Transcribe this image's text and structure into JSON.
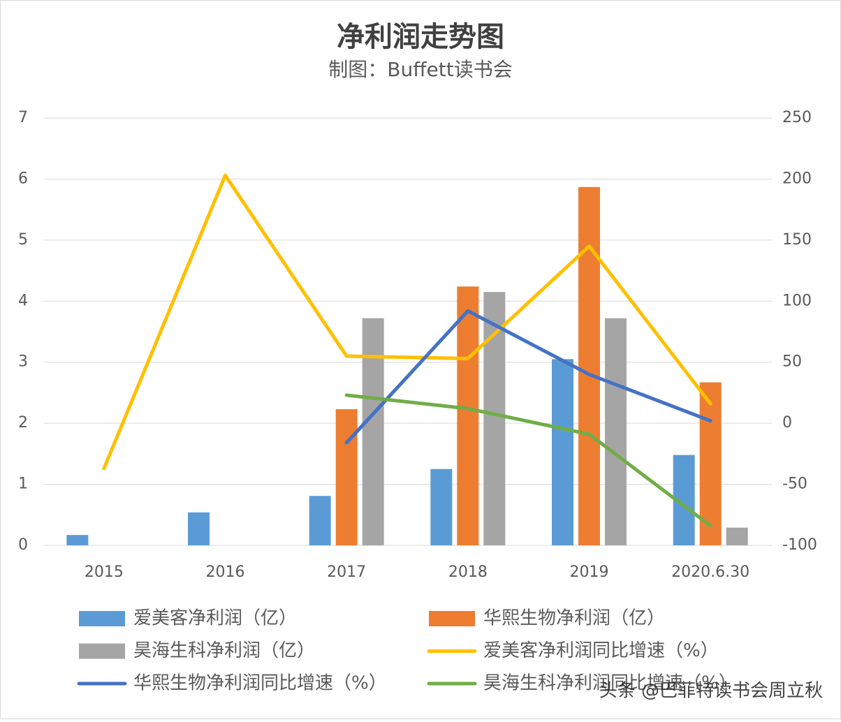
{
  "chart_data": {
    "type": "bar",
    "title": "净利润走势图",
    "subtitle": "制图：Buffett读书会",
    "categories": [
      "2015",
      "2016",
      "2017",
      "2018",
      "2019",
      "2020.6.30"
    ],
    "series": [
      {
        "name": "爱美客净利润（亿）",
        "type": "bar",
        "color": "#5b9bd5",
        "values": [
          0.17,
          0.54,
          0.81,
          1.25,
          3.05,
          1.48
        ]
      },
      {
        "name": "华熙生物净利润（亿）",
        "type": "bar",
        "color": "#ed7d31",
        "values": [
          null,
          null,
          2.23,
          4.24,
          5.87,
          2.67
        ]
      },
      {
        "name": "昊海生科净利润（亿）",
        "type": "bar",
        "color": "#a5a5a5",
        "values": [
          null,
          null,
          3.72,
          4.15,
          3.72,
          0.29
        ]
      },
      {
        "name": "爱美客净利润同比增速（%）",
        "type": "line",
        "axis": "y2",
        "color": "#ffc000",
        "values": [
          -37,
          203,
          55,
          53,
          145,
          16
        ]
      },
      {
        "name": "华熙生物净利润同比增速（%）",
        "type": "line",
        "axis": "y2",
        "color": "#4472c4",
        "values": [
          null,
          null,
          -16,
          92,
          40,
          2
        ]
      },
      {
        "name": "昊海生科净利润同比增速（%）",
        "type": "line",
        "axis": "y2",
        "color": "#70ad47",
        "values": [
          null,
          null,
          23,
          12,
          -9,
          -84
        ]
      }
    ],
    "ylim": [
      0,
      7
    ],
    "yticks": [
      0,
      1,
      2,
      3,
      4,
      5,
      6,
      7
    ],
    "y2lim": [
      -100,
      250
    ],
    "y2ticks": [
      -100,
      -50,
      0,
      50,
      100,
      150,
      200,
      250
    ],
    "grid": true,
    "watermark": "头条 @巴菲特读书会周立秋"
  }
}
